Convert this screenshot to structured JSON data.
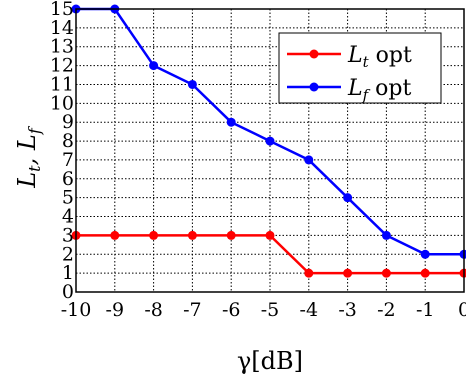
{
  "chart_data": {
    "type": "line",
    "xlabel": "γ[dB]",
    "ylabel": "L_t, L_f",
    "x": [
      -10,
      -9,
      -8,
      -7,
      -6,
      -5,
      -4,
      -3,
      -2,
      -1,
      0
    ],
    "xlim": [
      -10,
      0
    ],
    "ylim": [
      0,
      15
    ],
    "x_ticks": [
      "-10",
      "-9",
      "-8",
      "-7",
      "-6",
      "-5",
      "-4",
      "-3",
      "-2",
      "-1",
      "0"
    ],
    "y_ticks": [
      "0",
      "1",
      "2",
      "3",
      "4",
      "5",
      "6",
      "7",
      "8",
      "9",
      "10",
      "11",
      "12",
      "13",
      "14",
      "15"
    ],
    "grid": true,
    "legend_position": "top-right",
    "series": [
      {
        "name": "L_t opt",
        "color": "#ff0000",
        "values": [
          3,
          3,
          3,
          3,
          3,
          3,
          1,
          1,
          1,
          1,
          1
        ]
      },
      {
        "name": "L_f opt",
        "color": "#0000ff",
        "values": [
          15,
          15,
          12,
          11,
          9,
          8,
          7,
          5,
          3,
          2,
          2
        ]
      }
    ]
  }
}
